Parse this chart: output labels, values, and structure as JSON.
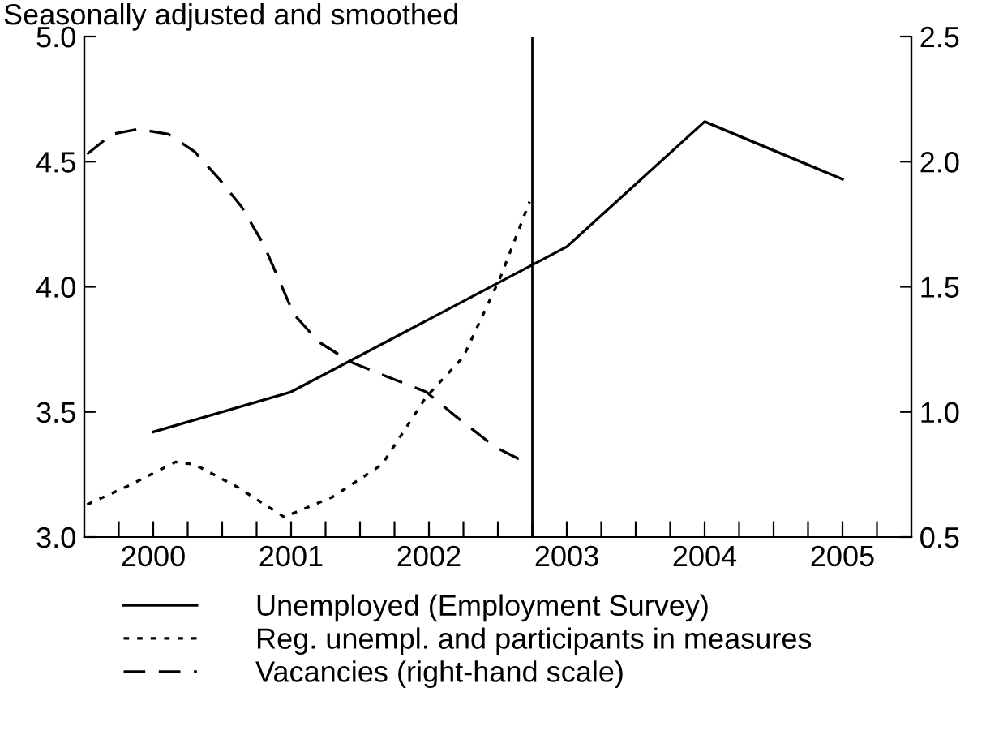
{
  "chart_data": {
    "type": "line",
    "subtitle": "Seasonally adjusted and smoothed",
    "xlim": [
      2000,
      2006
    ],
    "xticks": [
      {
        "value": 2000.25,
        "label": null
      },
      {
        "value": 2000.5,
        "label": "2000"
      },
      {
        "value": 2000.75,
        "label": null
      },
      {
        "value": 2001,
        "label": null
      },
      {
        "value": 2001.25,
        "label": null
      },
      {
        "value": 2001.5,
        "label": "2001"
      },
      {
        "value": 2001.75,
        "label": null
      },
      {
        "value": 2002,
        "label": null
      },
      {
        "value": 2002.25,
        "label": null
      },
      {
        "value": 2002.5,
        "label": "2002"
      },
      {
        "value": 2002.75,
        "label": null
      },
      {
        "value": 2003,
        "label": null
      },
      {
        "value": 2003.25,
        "label": null
      },
      {
        "value": 2003.5,
        "label": "2003"
      },
      {
        "value": 2003.75,
        "label": null
      },
      {
        "value": 2004,
        "label": null
      },
      {
        "value": 2004.25,
        "label": null
      },
      {
        "value": 2004.5,
        "label": "2004"
      },
      {
        "value": 2004.75,
        "label": null
      },
      {
        "value": 2005,
        "label": null
      },
      {
        "value": 2005.25,
        "label": null
      },
      {
        "value": 2005.5,
        "label": "2005"
      },
      {
        "value": 2005.75,
        "label": null
      }
    ],
    "ylim": [
      3.0,
      5.0
    ],
    "yticks": [
      {
        "value": 3.0,
        "label": "3.0"
      },
      {
        "value": 3.5,
        "label": "3.5"
      },
      {
        "value": 4.0,
        "label": "4.0"
      },
      {
        "value": 4.5,
        "label": "4.5"
      },
      {
        "value": 5.0,
        "label": "5.0"
      }
    ],
    "y2lim": [
      0.5,
      2.5
    ],
    "y2ticks": [
      {
        "value": 0.5,
        "label": "0.5"
      },
      {
        "value": 1.0,
        "label": "1.0"
      },
      {
        "value": 1.5,
        "label": "1.5"
      },
      {
        "value": 2.0,
        "label": "2.0"
      },
      {
        "value": 2.5,
        "label": "2.5"
      }
    ],
    "grid": false,
    "legend": "bottom",
    "ref_lines": [
      {
        "axis": "x",
        "value": 2003.25,
        "color": "#000000"
      }
    ],
    "series": [
      {
        "name": "Unemployed (Employment Survey)",
        "color": "#000000",
        "line_style": "solid",
        "x": [
          2000.5,
          2001.5,
          2002.5,
          2003.5,
          2004.5,
          2005.5
        ],
        "values": [
          3.42,
          3.58,
          3.87,
          4.16,
          4.66,
          4.43
        ]
      },
      {
        "name": "Reg. unempl. and participants in measures",
        "color": "#000000",
        "line_style": "dotted",
        "x": [
          2000.02,
          2000.34,
          2000.66,
          2000.8,
          2001.11,
          2001.45,
          2001.8,
          2002.16,
          2002.48,
          2002.75,
          2003.02,
          2003.23
        ],
        "values": [
          3.13,
          3.21,
          3.3,
          3.29,
          3.2,
          3.08,
          3.16,
          3.29,
          3.56,
          3.72,
          4.04,
          4.34
        ]
      },
      {
        "name": "Vacancies (right-hand scale)",
        "color": "#000000",
        "line_style": "dashed",
        "axis": "y2",
        "x": [
          2000.02,
          2000.2,
          2000.39,
          2000.61,
          2000.8,
          2000.98,
          2001.14,
          2001.3,
          2001.52,
          2001.7,
          2001.93,
          2002.2,
          2002.48,
          2002.7,
          2002.98,
          2003.16
        ],
        "values": [
          2.03,
          2.11,
          2.13,
          2.11,
          2.04,
          1.93,
          1.82,
          1.67,
          1.39,
          1.28,
          1.2,
          1.14,
          1.08,
          0.98,
          0.86,
          0.81
        ]
      }
    ]
  }
}
